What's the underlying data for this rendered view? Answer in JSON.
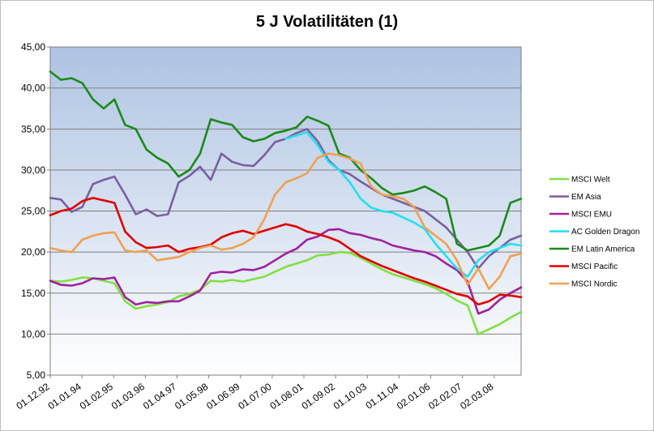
{
  "chart_data": {
    "type": "line",
    "title": "5 J Volatilitäten (1)",
    "xlabel": "",
    "ylabel": "",
    "ylim": [
      5,
      45
    ],
    "yticks": [
      "5,00",
      "10,00",
      "15,00",
      "20,00",
      "25,00",
      "30,00",
      "35,00",
      "40,00",
      "45,00"
    ],
    "xtick_labels": [
      "01.12.92",
      "01.01.94",
      "01.02.95",
      "01.03.96",
      "01.04.97",
      "01.05.98",
      "01.06.99",
      "01.07.00",
      "01.08.01",
      "01.09.02",
      "01.10.03",
      "01.11.04",
      "02.01.06",
      "02.02.07",
      "02.03.08"
    ],
    "grid": "horizontal",
    "legend_position": "right",
    "series": [
      {
        "name": "MSCI Welt",
        "color": "#80e040",
        "values": [
          16.5,
          16.4,
          16.6,
          16.9,
          16.8,
          16.5,
          16.2,
          14.0,
          13.1,
          13.4,
          13.6,
          13.9,
          14.6,
          14.9,
          15.4,
          16.5,
          16.4,
          16.6,
          16.4,
          16.7,
          17.0,
          17.6,
          18.2,
          18.6,
          19.0,
          19.6,
          19.7,
          20.0,
          19.9,
          19.3,
          18.6,
          17.9,
          17.3,
          16.9,
          16.5,
          16.1,
          15.6,
          14.9,
          14.1,
          13.5,
          10.0,
          10.6,
          11.2,
          12.0,
          12.7
        ]
      },
      {
        "name": "EM Asia",
        "color": "#7a5fa0",
        "values": [
          26.6,
          26.4,
          24.9,
          25.5,
          28.3,
          28.8,
          29.2,
          27.0,
          24.6,
          25.2,
          24.4,
          24.6,
          28.5,
          29.3,
          30.4,
          28.8,
          32.0,
          31.0,
          30.6,
          30.5,
          31.8,
          33.4,
          33.8,
          34.5,
          35.0,
          33.5,
          31.2,
          30.0,
          29.5,
          28.6,
          27.8,
          27.0,
          26.5,
          26.0,
          25.5,
          25.0,
          24.0,
          23.0,
          21.5,
          20.0,
          18.0,
          19.5,
          20.5,
          21.5,
          22.0
        ]
      },
      {
        "name": "MSCI EMU",
        "color": "#a020a0",
        "values": [
          16.5,
          16.0,
          15.9,
          16.2,
          16.8,
          16.7,
          16.9,
          14.5,
          13.6,
          13.9,
          13.8,
          14.0,
          14.0,
          14.6,
          15.3,
          17.4,
          17.6,
          17.5,
          17.9,
          17.8,
          18.2,
          19.0,
          19.8,
          20.4,
          21.5,
          21.9,
          22.7,
          22.8,
          22.3,
          22.1,
          21.7,
          21.4,
          20.8,
          20.5,
          20.2,
          20.0,
          19.5,
          18.6,
          17.8,
          16.4,
          12.5,
          13.0,
          14.2,
          15.0,
          15.7
        ]
      },
      {
        "name": "AC Golden Dragon",
        "color": "#20e0f0",
        "values": [
          null,
          null,
          null,
          null,
          null,
          null,
          null,
          null,
          null,
          null,
          null,
          null,
          null,
          null,
          null,
          null,
          null,
          null,
          null,
          null,
          null,
          null,
          33.8,
          34.2,
          34.6,
          33.0,
          31.0,
          30.0,
          28.5,
          26.5,
          25.4,
          25.0,
          24.8,
          24.2,
          23.6,
          22.8,
          21.0,
          19.5,
          18.0,
          17.0,
          19.0,
          20.0,
          20.5,
          21.0,
          20.8
        ]
      },
      {
        "name": "EM Latin America",
        "color": "#1a8a1a",
        "values": [
          42.0,
          41.0,
          41.2,
          40.6,
          38.6,
          37.5,
          38.6,
          35.5,
          35.0,
          32.5,
          31.5,
          30.8,
          29.2,
          30.0,
          32.0,
          36.2,
          35.8,
          35.5,
          34.0,
          33.5,
          33.8,
          34.5,
          34.8,
          35.2,
          36.5,
          36.0,
          35.4,
          32.0,
          31.5,
          30.0,
          29.0,
          27.8,
          27.0,
          27.2,
          27.5,
          28.0,
          27.3,
          26.5,
          21.0,
          20.2,
          20.5,
          20.8,
          22.0,
          26.0,
          26.5
        ]
      },
      {
        "name": "MSCI Pacific",
        "color": "#e00000",
        "values": [
          24.5,
          25.0,
          25.3,
          26.2,
          26.6,
          26.3,
          26.0,
          22.5,
          21.2,
          20.5,
          20.6,
          20.8,
          20.0,
          20.4,
          20.6,
          20.9,
          21.8,
          22.3,
          22.6,
          22.2,
          22.6,
          23.0,
          23.4,
          23.1,
          22.5,
          22.2,
          21.8,
          21.3,
          20.4,
          19.5,
          18.9,
          18.3,
          17.8,
          17.3,
          16.8,
          16.4,
          15.9,
          15.4,
          14.9,
          14.6,
          13.6,
          14.0,
          14.8,
          14.7,
          14.5
        ]
      },
      {
        "name": "MSCI Nordic",
        "color": "#f0a050",
        "values": [
          20.5,
          20.2,
          20.0,
          21.5,
          22.0,
          22.3,
          22.4,
          20.2,
          20.0,
          20.2,
          19.0,
          19.2,
          19.4,
          20.0,
          20.5,
          20.8,
          20.3,
          20.5,
          21.0,
          21.8,
          24.0,
          27.0,
          28.5,
          29.0,
          29.6,
          31.5,
          32.0,
          31.8,
          31.4,
          30.8,
          28.0,
          27.0,
          26.8,
          26.5,
          25.5,
          23.0,
          22.0,
          21.0,
          19.0,
          16.0,
          18.0,
          15.5,
          17.0,
          19.5,
          19.8
        ]
      }
    ]
  }
}
